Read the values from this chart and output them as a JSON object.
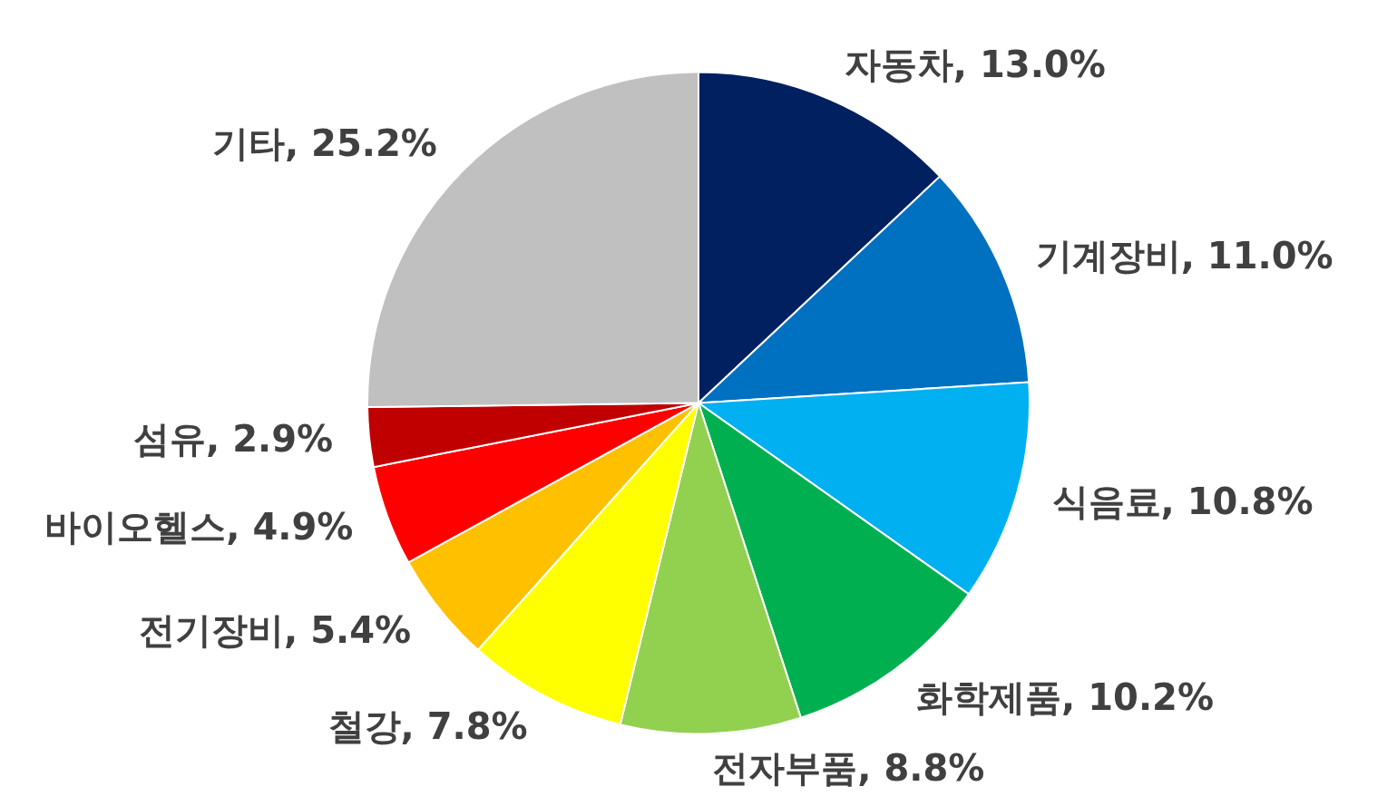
{
  "chart_data": {
    "type": "pie",
    "categories": [
      "자동차",
      "기계장비",
      "식음료",
      "화학제품",
      "전자부품",
      "철강",
      "전기장비",
      "바이오헬스",
      "섬유",
      "기타"
    ],
    "values": [
      13.0,
      11.0,
      10.8,
      10.2,
      8.8,
      7.8,
      5.4,
      4.9,
      2.9,
      25.2
    ],
    "value_labels": [
      ", 13.0%",
      ", 11.0%",
      ", 10.8%",
      ", 10.2%",
      ", 8.8%",
      ", 7.8%",
      ", 5.4%",
      ", 4.9%",
      ", 2.9%",
      ", 25.2%"
    ],
    "colors": [
      "#002060",
      "#0070c0",
      "#00b0f0",
      "#00b050",
      "#92d050",
      "#ffff00",
      "#ffc000",
      "#ff0000",
      "#c00000",
      "#c0c0c0"
    ],
    "legend": false
  }
}
